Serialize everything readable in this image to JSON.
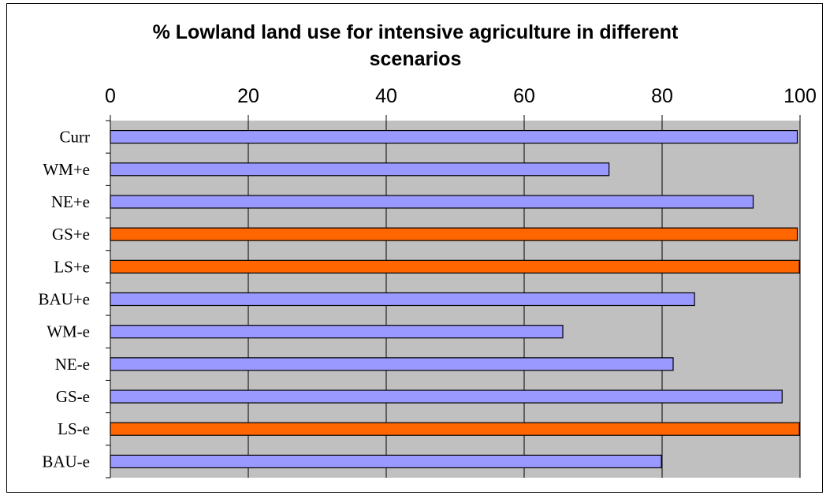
{
  "chart_data": {
    "type": "bar",
    "orientation": "horizontal",
    "title": "% Lowland land use for intensive agriculture in different scenarios",
    "title_lines": [
      "% Lowland land use for intensive agriculture in different",
      "scenarios"
    ],
    "xlabel": "",
    "ylabel": "",
    "xlim": [
      0,
      100
    ],
    "x_ticks": [
      "0",
      "20",
      "40",
      "60",
      "80",
      "100"
    ],
    "x_tick_values": [
      0,
      20,
      40,
      60,
      80,
      100
    ],
    "x_axis_position": "top",
    "grid": true,
    "legend": "none",
    "categories": [
      "Curr",
      "WM+e",
      "NE+e",
      "GS+e",
      "LS+e",
      "BAU+e",
      "WM-e",
      "NE-e",
      "GS-e",
      "LS-e",
      "BAU-e"
    ],
    "values": [
      99.6,
      72.3,
      93.2,
      99.6,
      99.9,
      84.7,
      65.6,
      81.6,
      97.4,
      99.9,
      79.9
    ],
    "highlighted": [
      false,
      false,
      false,
      true,
      true,
      false,
      false,
      false,
      false,
      true,
      false
    ],
    "colors": {
      "bar": "#9999ff",
      "highlight": "#ff6600",
      "plot_background": "#c0c0c0",
      "bar_outline": "#000000",
      "gridline": "#000000"
    }
  }
}
